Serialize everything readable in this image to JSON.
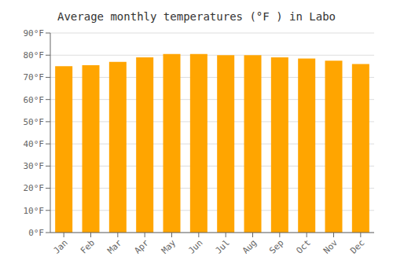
{
  "chart_data": {
    "type": "bar",
    "title": "Average monthly temperatures (°F ) in Labo",
    "categories": [
      "Jan",
      "Feb",
      "Mar",
      "Apr",
      "May",
      "Jun",
      "Jul",
      "Aug",
      "Sep",
      "Oct",
      "Nov",
      "Dec"
    ],
    "values": [
      75,
      75.5,
      77,
      79,
      80.5,
      80.5,
      80,
      80,
      79,
      78.5,
      77.5,
      76
    ],
    "color": "#FFA500",
    "ylim": [
      0,
      90
    ],
    "yticks": [
      {
        "value": 0,
        "label": "0°F"
      },
      {
        "value": 10,
        "label": "10°F"
      },
      {
        "value": 20,
        "label": "20°F"
      },
      {
        "value": 30,
        "label": "30°F"
      },
      {
        "value": 40,
        "label": "40°F"
      },
      {
        "value": 50,
        "label": "50°F"
      },
      {
        "value": 60,
        "label": "60°F"
      },
      {
        "value": 70,
        "label": "70°F"
      },
      {
        "value": 80,
        "label": "80°F"
      },
      {
        "value": 90,
        "label": "90°F"
      }
    ],
    "grid": true
  }
}
